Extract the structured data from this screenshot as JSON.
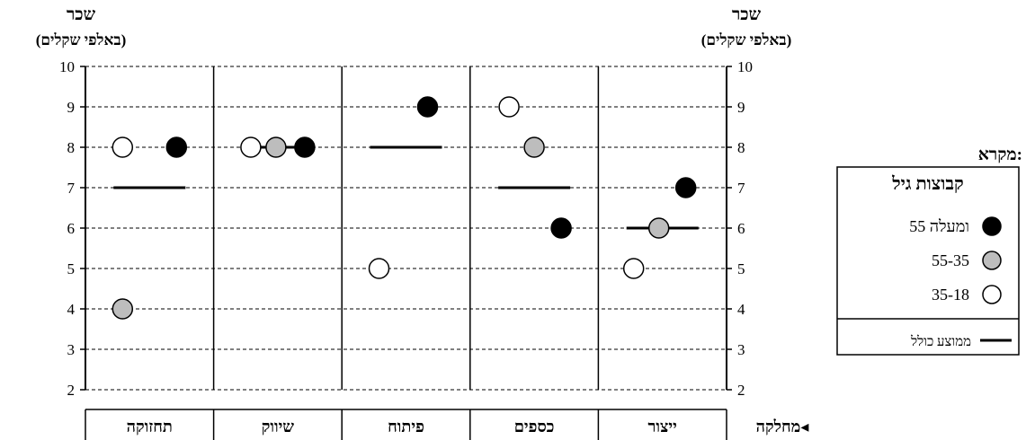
{
  "chart_data": {
    "type": "scatter",
    "y_axis_title_left": "שכר",
    "y_axis_subtitle_left": "(באלפי שקלים)",
    "y_axis_title_right": "שכר",
    "y_axis_subtitle_right": "(באלפי שקלים)",
    "ylim": [
      2,
      10
    ],
    "yticks": [
      2,
      3,
      4,
      5,
      6,
      7,
      8,
      9,
      10
    ],
    "grid": "dashed horizontal",
    "x_axis_label": "מחלקה◂",
    "categories": [
      "תחזוקה",
      "שיווק",
      "פיתוח",
      "כספים",
      "ייצור"
    ],
    "series": [
      {
        "name": "55 ומעלה",
        "style": "black",
        "values": [
          8,
          8,
          9,
          6,
          7
        ]
      },
      {
        "name": "55-35",
        "style": "gray",
        "values": [
          4,
          8,
          null,
          8,
          6
        ]
      },
      {
        "name": "35-18",
        "style": "white",
        "values": [
          8,
          8,
          5,
          9,
          5
        ]
      }
    ],
    "overall_average": {
      "name": "ממוצע כולל",
      "values": [
        7,
        8,
        8,
        7,
        6
      ]
    },
    "legend": {
      "heading": "מקרא:",
      "title": "קבוצות גיל",
      "placement": "right"
    },
    "colors": {
      "black": "#000000",
      "gray": "#bdbdbd",
      "white": "#ffffff"
    }
  }
}
